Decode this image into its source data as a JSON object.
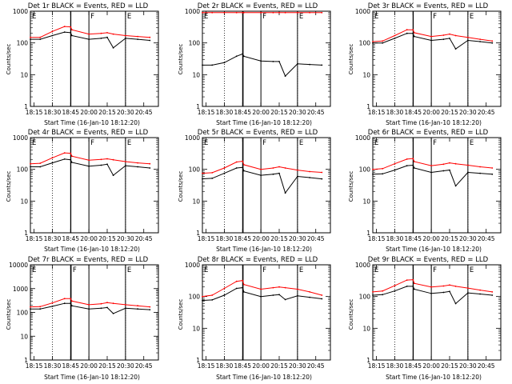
{
  "panels": [
    {
      "title": "Det 1r BLACK = Events, RED = LLD",
      "ylabel": "Counts/sec",
      "xlabel": "Start Time (16-Jan-10 18:12:20)"
    },
    {
      "title": "Det 2r BLACK = Events, RED = LLD",
      "ylabel": "Counts/sec",
      "xlabel": "Start Time (16-Jan-10 18:12:20)"
    },
    {
      "title": "Det 3r BLACK = Events, RED = LLD",
      "ylabel": "Counts/sec",
      "xlabel": "Start Time (16-Jan-10 18:12:20)"
    },
    {
      "title": "Det 4r BLACK = Events, RED = LLD",
      "ylabel": "Counts/sec",
      "xlabel": "Start Time (16-Jan-10 18:12:20)"
    },
    {
      "title": "Det 5r BLACK = Events, RED = LLD",
      "ylabel": "Counts/sec",
      "xlabel": "Start Time (16-Jan-10 18:12:20)"
    },
    {
      "title": "Det 6r BLACK = Events, RED = LLD",
      "ylabel": "Counts/sec",
      "xlabel": "Start Time (16-Jan-10 18:12:20)"
    },
    {
      "title": "Det 7r BLACK = Events, RED = LLD",
      "ylabel": "Counts/sec",
      "xlabel": "Start Time (16-Jan-10 18:12:20)"
    },
    {
      "title": "Det 8r BLACK = Events, RED = LLD",
      "ylabel": "Counts/sec",
      "xlabel": "Start Time (16-Jan-10 18:12:20)"
    },
    {
      "title": "Det 9r BLACK = Events, RED = LLD",
      "ylabel": "Counts/sec",
      "xlabel": "Start Time (16-Jan-10 18:12:20)"
    }
  ],
  "colors": {
    "events": "#000000",
    "lld": "#ff0000",
    "axis": "#000000"
  },
  "chart_data": [
    {
      "type": "line",
      "panel": "Det 1r",
      "title": "Det 1r BLACK = Events, RED = LLD",
      "xlabel": "Start Time (16-Jan-10 18:12:20)",
      "ylabel": "Counts/sec",
      "x_ticks": [
        "18:15",
        "18:30",
        "18:45",
        "20:00",
        "20:15",
        "20:30",
        "20:45"
      ],
      "y_scale": "log",
      "ylim": [
        1,
        1000
      ],
      "y_ticks": [
        "1",
        "10",
        "100",
        "1000"
      ],
      "markers": {
        "dotted": [
          "18:30",
          "20:30"
        ],
        "solid": [
          "18:45",
          "18:46",
          "20:00",
          "20:30"
        ],
        "labels": [
          "E",
          "F",
          "E"
        ]
      },
      "x": [
        "18:12",
        "18:20",
        "18:30",
        "18:40",
        "18:45",
        "18:50",
        "20:00",
        "20:10",
        "20:15",
        "20:20",
        "20:30",
        "20:40",
        "20:50"
      ],
      "series": [
        {
          "name": "LLD",
          "values": [
            150,
            150,
            230,
            330,
            320,
            260,
            190,
            200,
            210,
            190,
            170,
            160,
            150
          ]
        },
        {
          "name": "Events",
          "values": [
            130,
            130,
            170,
            220,
            210,
            170,
            130,
            140,
            150,
            70,
            140,
            130,
            120
          ]
        }
      ]
    },
    {
      "type": "line",
      "panel": "Det 2r",
      "title": "Det 2r BLACK = Events, RED = LLD",
      "xlabel": "Start Time (16-Jan-10 18:12:20)",
      "ylabel": "Counts/sec",
      "x_ticks": [
        "18:15",
        "18:30",
        "18:45",
        "20:00",
        "20:15",
        "20:30",
        "20:45"
      ],
      "y_scale": "log",
      "ylim": [
        1,
        1000
      ],
      "y_ticks": [
        "1",
        "10",
        "100",
        "1000"
      ],
      "markers": {
        "dotted": [
          "18:30",
          "20:30"
        ],
        "solid": [
          "18:45",
          "18:47",
          "20:00",
          "20:30"
        ],
        "labels": [
          "E",
          "F",
          "E"
        ]
      },
      "x": [
        "18:12",
        "18:20",
        "18:30",
        "18:40",
        "18:45",
        "18:50",
        "20:00",
        "20:10",
        "20:15",
        "20:20",
        "20:30",
        "20:40",
        "20:50"
      ],
      "series": [
        {
          "name": "LLD",
          "values": [
            900,
            900,
            900,
            900,
            900,
            900,
            900,
            900,
            900,
            900,
            900,
            900,
            900
          ]
        },
        {
          "name": "Events",
          "values": [
            20,
            20,
            24,
            38,
            45,
            38,
            27,
            26,
            26,
            9,
            22,
            21,
            20
          ]
        }
      ]
    },
    {
      "type": "line",
      "panel": "Det 3r",
      "title": "Det 3r BLACK = Events, RED = LLD",
      "xlabel": "Start Time (16-Jan-10 18:12:20)",
      "ylabel": "Counts/sec",
      "x_ticks": [
        "18:15",
        "18:30",
        "18:45",
        "20:00",
        "20:15",
        "20:30",
        "20:45"
      ],
      "y_scale": "log",
      "ylim": [
        1,
        1000
      ],
      "y_ticks": [
        "1",
        "10",
        "100",
        "1000"
      ],
      "markers": {
        "dotted": [
          "18:30",
          "20:30"
        ],
        "solid": [
          "18:45",
          "18:46",
          "20:00",
          "20:30"
        ],
        "labels": [
          "E",
          "F",
          "E"
        ]
      },
      "x": [
        "18:12",
        "18:20",
        "18:30",
        "18:40",
        "18:45",
        "18:50",
        "20:00",
        "20:10",
        "20:15",
        "20:20",
        "20:30",
        "20:40",
        "20:50"
      ],
      "series": [
        {
          "name": "LLD",
          "values": [
            110,
            115,
            170,
            260,
            260,
            210,
            160,
            175,
            190,
            170,
            150,
            130,
            115
          ]
        },
        {
          "name": "Events",
          "values": [
            100,
            100,
            140,
            200,
            200,
            160,
            120,
            130,
            140,
            65,
            120,
            110,
            100
          ]
        }
      ]
    },
    {
      "type": "line",
      "panel": "Det 4r",
      "title": "Det 4r BLACK = Events, RED = LLD",
      "xlabel": "Start Time (16-Jan-10 18:12:20)",
      "ylabel": "Counts/sec",
      "x_ticks": [
        "18:15",
        "18:30",
        "18:45",
        "20:00",
        "20:15",
        "20:30",
        "20:45"
      ],
      "y_scale": "log",
      "ylim": [
        1,
        1000
      ],
      "y_ticks": [
        "1",
        "10",
        "100",
        "1000"
      ],
      "markers": {
        "dotted": [
          "18:30",
          "20:30"
        ],
        "solid": [
          "18:45",
          "18:46",
          "20:00",
          "20:30"
        ],
        "labels": [
          "E",
          "F",
          "E"
        ]
      },
      "x": [
        "18:12",
        "18:20",
        "18:30",
        "18:40",
        "18:45",
        "18:50",
        "20:00",
        "20:10",
        "20:15",
        "20:20",
        "20:30",
        "20:40",
        "20:50"
      ],
      "series": [
        {
          "name": "LLD",
          "values": [
            150,
            155,
            230,
            330,
            320,
            260,
            195,
            205,
            215,
            200,
            175,
            160,
            150
          ]
        },
        {
          "name": "Events",
          "values": [
            120,
            120,
            160,
            210,
            200,
            165,
            125,
            135,
            145,
            65,
            130,
            120,
            110
          ]
        }
      ]
    },
    {
      "type": "line",
      "panel": "Det 5r",
      "title": "Det 5r BLACK = Events, RED = LLD",
      "xlabel": "Start Time (16-Jan-10 18:12:20)",
      "ylabel": "Counts/sec",
      "x_ticks": [
        "18:15",
        "18:30",
        "18:45",
        "20:00",
        "20:15",
        "20:30",
        "20:45"
      ],
      "y_scale": "log",
      "ylim": [
        1,
        1000
      ],
      "y_ticks": [
        "1",
        "10",
        "100",
        "1000"
      ],
      "markers": {
        "dotted": [
          "18:30",
          "20:30"
        ],
        "solid": [
          "18:45",
          "18:47",
          "20:00",
          "20:30"
        ],
        "labels": [
          "E",
          "F",
          "E"
        ]
      },
      "x": [
        "18:12",
        "18:20",
        "18:30",
        "18:40",
        "18:45",
        "18:50",
        "20:00",
        "20:10",
        "20:15",
        "20:20",
        "20:30",
        "20:40",
        "20:50"
      ],
      "series": [
        {
          "name": "LLD",
          "values": [
            75,
            78,
            110,
            170,
            180,
            140,
            100,
            110,
            120,
            110,
            95,
            85,
            80
          ]
        },
        {
          "name": "Events",
          "values": [
            50,
            52,
            75,
            110,
            115,
            90,
            65,
            70,
            75,
            18,
            60,
            55,
            50
          ]
        }
      ]
    },
    {
      "type": "line",
      "panel": "Det 6r",
      "title": "Det 6r BLACK = Events, RED = LLD",
      "xlabel": "Start Time (16-Jan-10 18:12:20)",
      "ylabel": "Counts/sec",
      "x_ticks": [
        "18:15",
        "18:30",
        "18:45",
        "20:00",
        "20:15",
        "20:30",
        "20:45"
      ],
      "y_scale": "log",
      "ylim": [
        1,
        1000
      ],
      "y_ticks": [
        "1",
        "10",
        "100",
        "1000"
      ],
      "markers": {
        "dotted": [
          "18:30",
          "20:30"
        ],
        "solid": [
          "18:45",
          "18:46",
          "20:00",
          "20:30"
        ],
        "labels": [
          "E",
          "F",
          "E"
        ]
      },
      "x": [
        "18:12",
        "18:20",
        "18:30",
        "18:40",
        "18:45",
        "18:50",
        "20:00",
        "20:10",
        "20:15",
        "20:20",
        "20:30",
        "20:40",
        "20:50"
      ],
      "series": [
        {
          "name": "LLD",
          "values": [
            100,
            105,
            150,
            210,
            220,
            175,
            130,
            145,
            160,
            150,
            135,
            120,
            110
          ]
        },
        {
          "name": "Events",
          "values": [
            70,
            72,
            95,
            130,
            135,
            110,
            80,
            90,
            95,
            30,
            80,
            75,
            70
          ]
        }
      ]
    },
    {
      "type": "line",
      "panel": "Det 7r",
      "title": "Det 7r BLACK = Events, RED = LLD",
      "xlabel": "Start Time (16-Jan-10 18:12:20)",
      "ylabel": "Counts/sec",
      "x_ticks": [
        "18:15",
        "18:30",
        "18:45",
        "20:00",
        "20:15",
        "20:30",
        "20:45"
      ],
      "y_scale": "log",
      "ylim": [
        1,
        10000
      ],
      "y_ticks": [
        "1",
        "10",
        "100",
        "1000",
        "10000"
      ],
      "markers": {
        "dotted": [
          "18:30",
          "20:30"
        ],
        "solid": [
          "18:45",
          "18:46",
          "18:47",
          "20:00",
          "20:30"
        ],
        "labels": [
          "E",
          "F",
          "E"
        ]
      },
      "x": [
        "18:12",
        "18:20",
        "18:30",
        "18:40",
        "18:45",
        "18:50",
        "20:00",
        "20:10",
        "20:15",
        "20:20",
        "20:30",
        "20:40",
        "20:50"
      ],
      "series": [
        {
          "name": "LLD",
          "values": [
            170,
            175,
            250,
            380,
            380,
            300,
            210,
            230,
            260,
            240,
            210,
            190,
            170
          ]
        },
        {
          "name": "Events",
          "values": [
            140,
            140,
            180,
            240,
            240,
            190,
            140,
            150,
            160,
            90,
            150,
            140,
            130
          ]
        }
      ]
    },
    {
      "type": "line",
      "panel": "Det 8r",
      "title": "Det 8r BLACK = Events, RED = LLD",
      "xlabel": "Start Time (16-Jan-10 18:12:20)",
      "ylabel": "Counts/sec",
      "x_ticks": [
        "18:15",
        "18:30",
        "18:45",
        "20:00",
        "20:15",
        "20:30",
        "20:45"
      ],
      "y_scale": "log",
      "ylim": [
        1,
        1000
      ],
      "y_ticks": [
        "1",
        "10",
        "100",
        "1000"
      ],
      "markers": {
        "dotted": [
          "18:30",
          "20:30"
        ],
        "solid": [
          "18:45",
          "18:47",
          "20:00",
          "20:30"
        ],
        "labels": [
          "E",
          "F",
          "E"
        ]
      },
      "x": [
        "18:12",
        "18:20",
        "18:30",
        "18:40",
        "18:45",
        "18:50",
        "20:00",
        "20:10",
        "20:15",
        "20:20",
        "20:30",
        "20:40",
        "20:50"
      ],
      "series": [
        {
          "name": "LLD",
          "values": [
            100,
            110,
            180,
            300,
            320,
            240,
            170,
            190,
            200,
            190,
            170,
            140,
            110
          ]
        },
        {
          "name": "Events",
          "values": [
            75,
            78,
            110,
            180,
            190,
            140,
            100,
            110,
            115,
            80,
            105,
            95,
            85
          ]
        }
      ]
    },
    {
      "type": "line",
      "panel": "Det 9r",
      "title": "Det 9r BLACK = Events, RED = LLD",
      "xlabel": "Start Time (16-Jan-10 18:12:20)",
      "ylabel": "Counts/sec",
      "x_ticks": [
        "18:15",
        "18:30",
        "18:45",
        "20:00",
        "20:15",
        "20:30",
        "20:45"
      ],
      "y_scale": "log",
      "ylim": [
        1,
        1000
      ],
      "y_ticks": [
        "1",
        "10",
        "100",
        "1000"
      ],
      "markers": {
        "dotted": [
          "18:30",
          "20:30"
        ],
        "solid": [
          "18:45",
          "18:46",
          "20:00",
          "20:30"
        ],
        "labels": [
          "E",
          "F",
          "E"
        ]
      },
      "x": [
        "18:12",
        "18:20",
        "18:30",
        "18:40",
        "18:45",
        "18:50",
        "20:00",
        "20:10",
        "20:15",
        "20:20",
        "20:30",
        "20:40",
        "20:50"
      ],
      "series": [
        {
          "name": "LLD",
          "values": [
            140,
            150,
            220,
            330,
            340,
            260,
            200,
            215,
            230,
            210,
            185,
            160,
            140
          ]
        },
        {
          "name": "Events",
          "values": [
            110,
            115,
            150,
            210,
            210,
            170,
            125,
            135,
            145,
            60,
            130,
            120,
            110
          ]
        }
      ]
    }
  ]
}
